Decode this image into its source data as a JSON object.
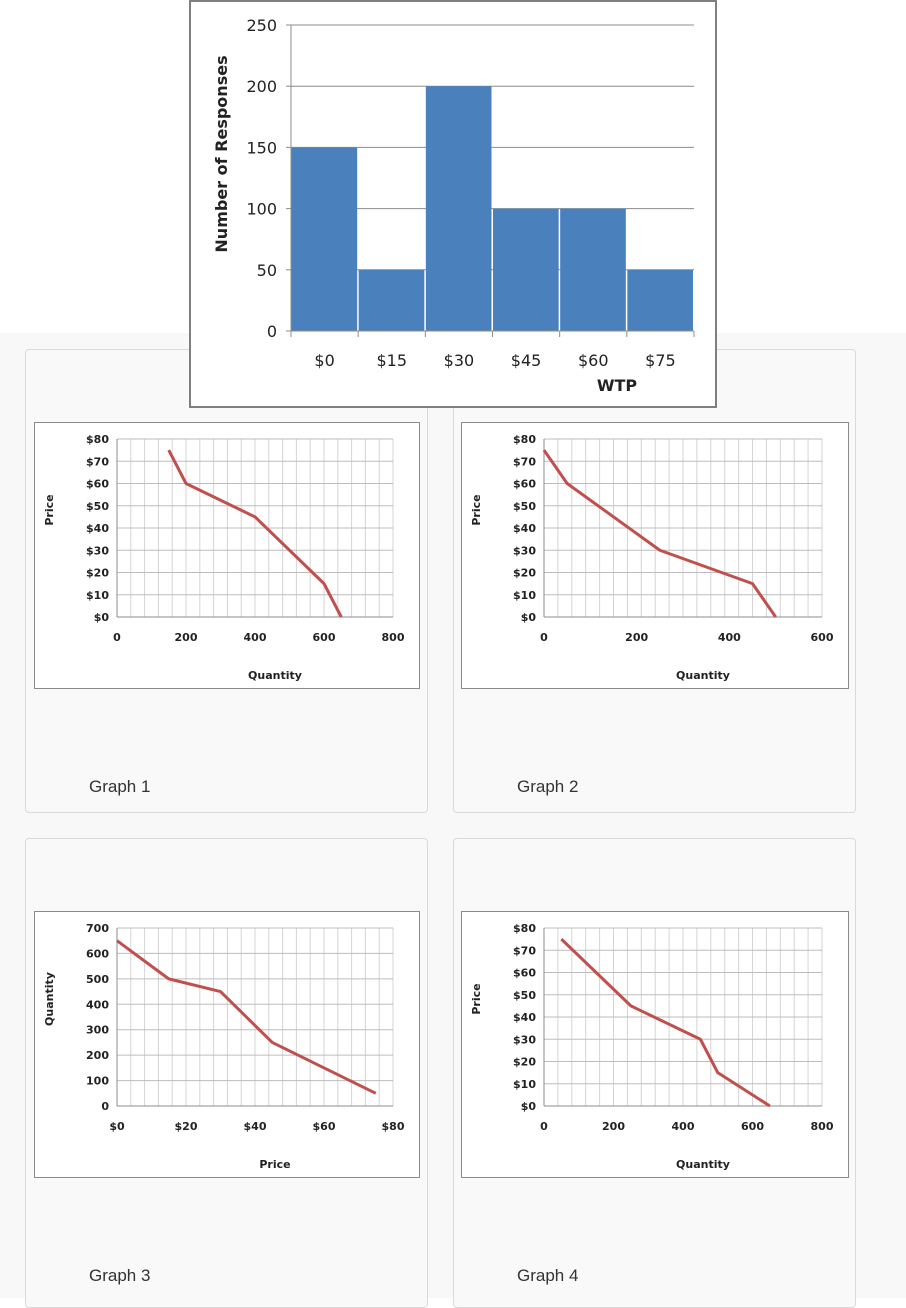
{
  "histogram": {
    "chart_data": {
      "type": "bar",
      "categories": [
        "$0",
        "$15",
        "$30",
        "$45",
        "$60",
        "$75"
      ],
      "values": [
        150,
        50,
        200,
        100,
        100,
        50
      ],
      "ylabel": "Number of Responses",
      "xlabel": "WTP",
      "ylim": [
        0,
        250
      ],
      "yticks": [
        "0",
        "50",
        "100",
        "150",
        "200",
        "250"
      ],
      "bar_color": "#4a81bd",
      "grid": true
    }
  },
  "cards": [
    {
      "caption": "Graph 1",
      "chart_data": {
        "type": "line",
        "x": [
          150,
          200,
          400,
          600,
          650
        ],
        "y": [
          75,
          60,
          45,
          15,
          0
        ],
        "xlim": [
          0,
          800
        ],
        "ylim": [
          0,
          80
        ],
        "xticks": [
          "0",
          "200",
          "400",
          "600",
          "800"
        ],
        "yticks": [
          "$0",
          "$10",
          "$20",
          "$30",
          "$40",
          "$50",
          "$60",
          "$70",
          "$80"
        ],
        "xlabel": "Quantity",
        "ylabel": "Price",
        "line_color": "#c0504d"
      }
    },
    {
      "caption": "Graph 2",
      "chart_data": {
        "type": "line",
        "x": [
          0,
          50,
          250,
          450,
          500
        ],
        "y": [
          75,
          60,
          30,
          15,
          0
        ],
        "xlim": [
          0,
          600
        ],
        "ylim": [
          0,
          80
        ],
        "xticks": [
          "0",
          "200",
          "400",
          "600"
        ],
        "yticks": [
          "$0",
          "$10",
          "$20",
          "$30",
          "$40",
          "$50",
          "$60",
          "$70",
          "$80"
        ],
        "xlabel": "Quantity",
        "ylabel": "Price",
        "line_color": "#c0504d"
      }
    },
    {
      "caption": "Graph 3",
      "chart_data": {
        "type": "line",
        "x": [
          0,
          15,
          30,
          45,
          75
        ],
        "y": [
          650,
          500,
          450,
          250,
          50
        ],
        "xlim": [
          0,
          80
        ],
        "ylim": [
          0,
          700
        ],
        "xticks": [
          "$0",
          "$20",
          "$40",
          "$60",
          "$80"
        ],
        "yticks": [
          "0",
          "100",
          "200",
          "300",
          "400",
          "500",
          "600",
          "700"
        ],
        "xlabel": "Price",
        "ylabel": "Quantity",
        "line_color": "#c0504d"
      }
    },
    {
      "caption": "Graph 4",
      "chart_data": {
        "type": "line",
        "x": [
          50,
          250,
          450,
          500,
          650
        ],
        "y": [
          75,
          45,
          30,
          15,
          0
        ],
        "xlim": [
          0,
          800
        ],
        "ylim": [
          0,
          80
        ],
        "xticks": [
          "0",
          "200",
          "400",
          "600",
          "800"
        ],
        "yticks": [
          "$0",
          "$10",
          "$20",
          "$30",
          "$40",
          "$50",
          "$60",
          "$70",
          "$80"
        ],
        "xlabel": "Quantity",
        "ylabel": "Price",
        "line_color": "#c0504d"
      }
    }
  ]
}
